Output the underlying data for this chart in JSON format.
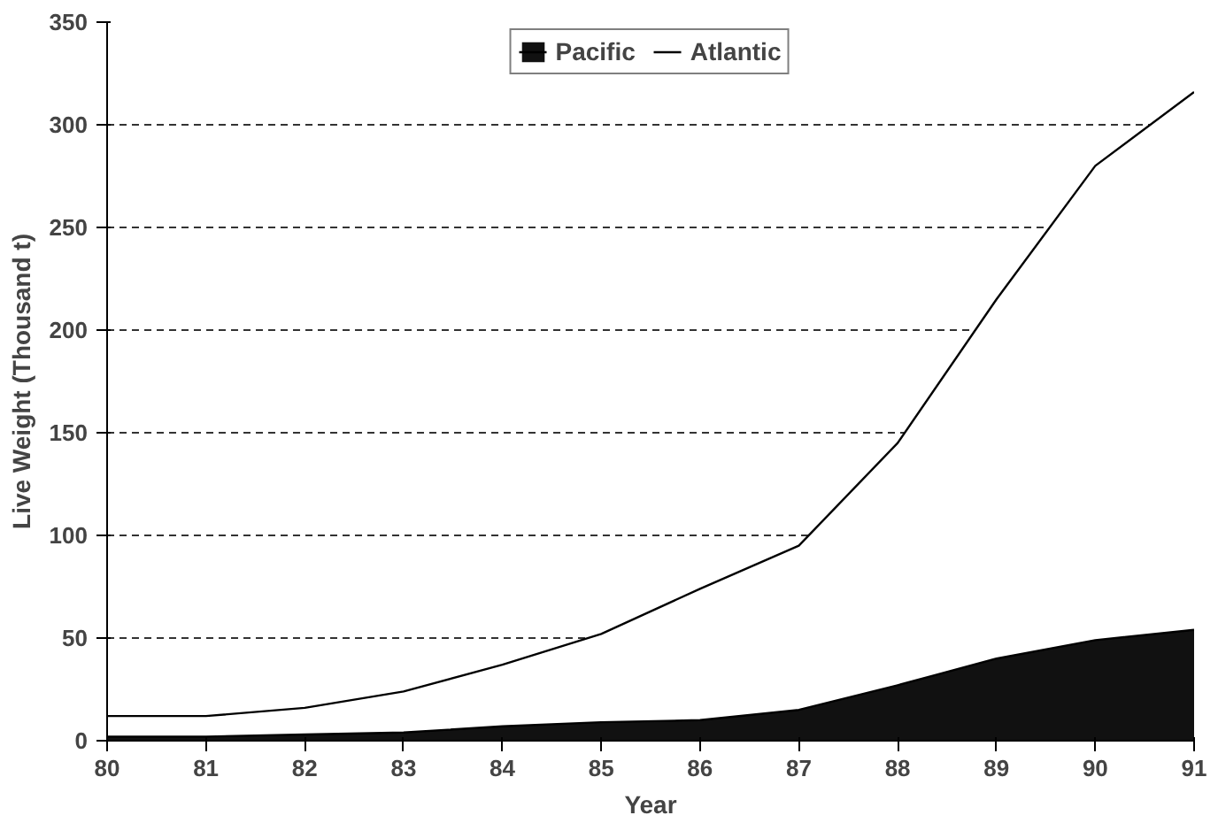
{
  "chart_data": {
    "type": "area",
    "stacked": true,
    "xlabel": "Year",
    "ylabel": "Live Weight (Thousand t)",
    "categories": [
      "80",
      "81",
      "82",
      "83",
      "84",
      "85",
      "86",
      "87",
      "88",
      "89",
      "90",
      "91"
    ],
    "series": [
      {
        "name": "Pacific",
        "color": "#111111",
        "values": [
          2,
          2,
          3,
          4,
          7,
          9,
          10,
          15,
          27,
          40,
          49,
          54
        ]
      },
      {
        "name": "Atlantic",
        "color": "#ffffff",
        "values": [
          10,
          10,
          13,
          20,
          30,
          43,
          64,
          80,
          118,
          175,
          231,
          262
        ]
      }
    ],
    "ylim": [
      0,
      350
    ],
    "yticks": [
      0,
      50,
      100,
      150,
      200,
      250,
      300,
      350
    ],
    "grid": "y",
    "legend": "top"
  }
}
